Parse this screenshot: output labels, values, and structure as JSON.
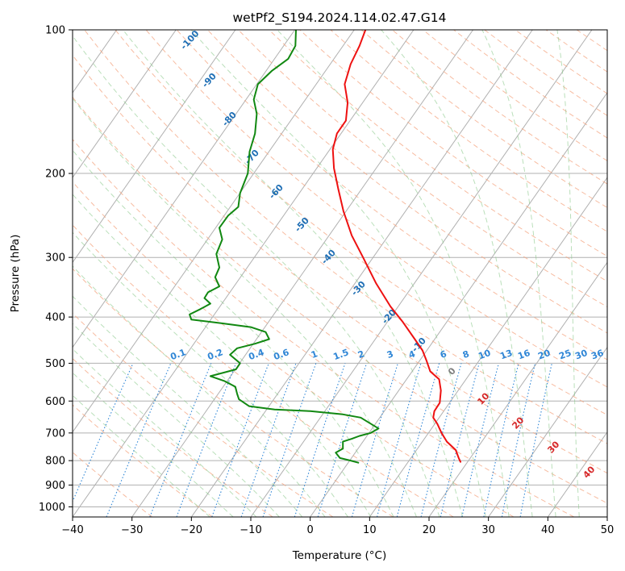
{
  "chart_data": {
    "type": "line",
    "title": "wetPf2_S194.2024.114.02.47.G14",
    "xlabel": "Temperature (°C)",
    "ylabel": "Pressure (hPa)",
    "xlim": [
      -40,
      50
    ],
    "ylim": [
      1050,
      100
    ],
    "y_scale": "log",
    "grid": true,
    "x_ticks": [
      "−40",
      "−30",
      "−20",
      "−10",
      "0",
      "10",
      "20",
      "30",
      "40",
      "50"
    ],
    "y_ticks": [
      "100",
      "200",
      "300",
      "400",
      "500",
      "600",
      "700",
      "800",
      "900",
      "1000"
    ],
    "isotherm_labels": [
      "-100",
      "-90",
      "-80",
      "-70",
      "-60",
      "-50",
      "-40",
      "-30",
      "-20",
      "-10",
      "0",
      "10",
      "20",
      "30",
      "40"
    ],
    "mixing_ratio_labels": [
      "0.1",
      "0.2",
      "0.4",
      "0.6",
      "1",
      "1.5",
      "2",
      "3",
      "4",
      "6",
      "8",
      "10",
      "13",
      "16",
      "20",
      "25",
      "30",
      "36"
    ],
    "series": [
      {
        "color": "#ee1111",
        "points": [
          [
            9.3,
            100
          ],
          [
            8.3,
            108
          ],
          [
            6.8,
            118
          ],
          [
            5.8,
            130
          ],
          [
            6.3,
            142
          ],
          [
            6.0,
            155
          ],
          [
            4.5,
            165
          ],
          [
            3.8,
            178
          ],
          [
            4.0,
            195
          ],
          [
            4.7,
            215
          ],
          [
            5.6,
            240
          ],
          [
            7.0,
            270
          ],
          [
            8.9,
            300
          ],
          [
            11.1,
            340
          ],
          [
            13.5,
            380
          ],
          [
            15.6,
            410
          ],
          [
            17.6,
            445
          ],
          [
            18.9,
            470
          ],
          [
            19.6,
            495
          ],
          [
            20.2,
            520
          ],
          [
            21.7,
            540
          ],
          [
            22.0,
            570
          ],
          [
            21.8,
            605
          ],
          [
            20.9,
            630
          ],
          [
            20.7,
            650
          ],
          [
            21.4,
            670
          ],
          [
            22.1,
            700
          ],
          [
            23.0,
            730
          ],
          [
            24.5,
            760
          ],
          [
            25.0,
            790
          ],
          [
            25.3,
            805
          ]
        ]
      },
      {
        "color": "#118811",
        "points": [
          [
            -2.4,
            100
          ],
          [
            -2.5,
            108
          ],
          [
            -3.7,
            115
          ],
          [
            -6.5,
            122
          ],
          [
            -8.8,
            130
          ],
          [
            -9.5,
            140
          ],
          [
            -9.0,
            150
          ],
          [
            -9.3,
            165
          ],
          [
            -10.2,
            180
          ],
          [
            -10.5,
            200
          ],
          [
            -11.8,
            220
          ],
          [
            -12.1,
            235
          ],
          [
            -13.8,
            245
          ],
          [
            -15.3,
            260
          ],
          [
            -14.8,
            275
          ],
          [
            -15.8,
            295
          ],
          [
            -15.3,
            315
          ],
          [
            -16.0,
            330
          ],
          [
            -15.3,
            345
          ],
          [
            -17.2,
            355
          ],
          [
            -17.8,
            365
          ],
          [
            -16.8,
            375
          ],
          [
            -18.5,
            385
          ],
          [
            -20.3,
            395
          ],
          [
            -20.0,
            405
          ],
          [
            -15.0,
            412
          ],
          [
            -10.0,
            420
          ],
          [
            -7.5,
            430
          ],
          [
            -6.9,
            445
          ],
          [
            -9.3,
            455
          ],
          [
            -12.3,
            465
          ],
          [
            -13.5,
            480
          ],
          [
            -11.8,
            500
          ],
          [
            -12.5,
            515
          ],
          [
            -16.8,
            532
          ],
          [
            -14.4,
            545
          ],
          [
            -12.6,
            560
          ],
          [
            -12.3,
            580
          ],
          [
            -12.0,
            595
          ],
          [
            -10.3,
            615
          ],
          [
            -6.0,
            625
          ],
          [
            0.0,
            630
          ],
          [
            5.5,
            640
          ],
          [
            8.5,
            650
          ],
          [
            9.8,
            665
          ],
          [
            11.5,
            685
          ],
          [
            10.2,
            700
          ],
          [
            8.3,
            710
          ],
          [
            7.0,
            720
          ],
          [
            5.5,
            730
          ],
          [
            5.5,
            755
          ],
          [
            4.3,
            770
          ],
          [
            5.0,
            790
          ],
          [
            6.8,
            800
          ],
          [
            8.1,
            808
          ]
        ]
      }
    ]
  }
}
